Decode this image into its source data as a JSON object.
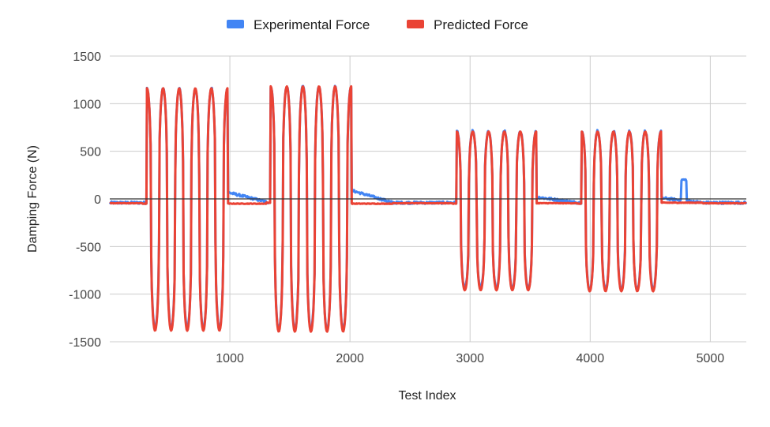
{
  "chart_data": {
    "type": "line",
    "title": "",
    "xlabel": "Test Index",
    "ylabel": "Damping Force (N)",
    "xlim": [
      0,
      5300
    ],
    "ylim": [
      -1500,
      1500
    ],
    "x_ticks": [
      1000,
      2000,
      3000,
      4000,
      5000
    ],
    "y_ticks": [
      1500,
      1000,
      500,
      0,
      -500,
      -1000,
      -1500
    ],
    "grid": true,
    "legend_position": "top",
    "colors": {
      "experimental": "#4285f4",
      "predicted": "#ea4335",
      "zero_line": "#333333",
      "grid": "#cccccc"
    },
    "segments": [
      {
        "start": 310,
        "end": 980,
        "amp_high": 1150,
        "amp_low": -1370,
        "cycles": 5,
        "baseline_before": -50,
        "baseline_after": -50,
        "exp_after": 70
      },
      {
        "start": 1340,
        "end": 2010,
        "amp_high": 1170,
        "amp_low": -1380,
        "cycles": 5,
        "baseline_before": -40,
        "baseline_after": -50,
        "exp_after": 90
      },
      {
        "start": 2890,
        "end": 3550,
        "amp_high": 700,
        "amp_low": -950,
        "cycles": 5,
        "baseline_before": -50,
        "baseline_after": -45,
        "exp_after": 20
      },
      {
        "start": 3930,
        "end": 4590,
        "amp_high": 700,
        "amp_low": -960,
        "cycles": 5,
        "baseline_before": -50,
        "baseline_after": -40,
        "exp_after": 10
      }
    ],
    "series": [
      {
        "name": "Experimental Force"
      },
      {
        "name": "Predicted Force"
      }
    ]
  }
}
